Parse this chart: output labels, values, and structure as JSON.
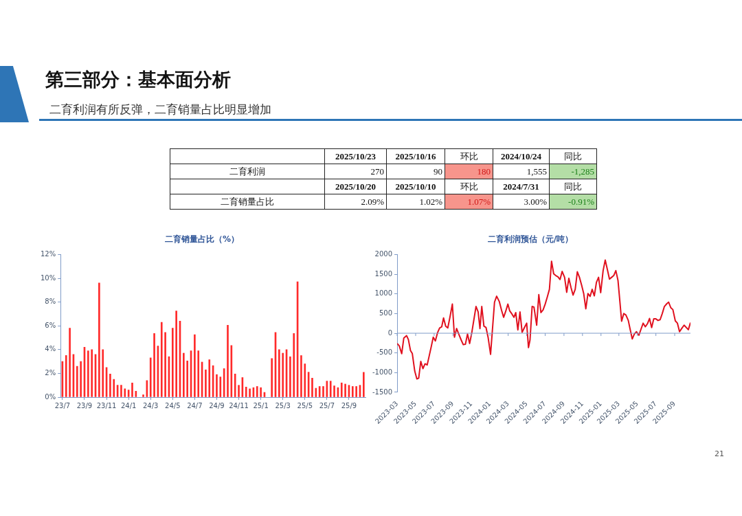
{
  "chart_data": [
    {
      "type": "other",
      "title": "第三部分：基本面分析",
      "subtitle": "二育利润有所反弹，二育销量占比明显增加",
      "cell_labels": [
        [
          null,
          "2025/10/23",
          "2025/10/16",
          "环比",
          "2024/10/24",
          "同比"
        ],
        [
          "二育利润",
          "270",
          "90",
          "180",
          "1,555",
          "-1,285"
        ],
        [
          null,
          "2025/10/20",
          "2025/10/10",
          "环比",
          "2024/7/31",
          "同比"
        ],
        [
          "二育销量占比",
          "2.09%",
          "1.02%",
          "1.07%",
          "3.00%",
          "-0.91%"
        ]
      ],
      "colors": [
        null,
        null,
        null,
        "#f7958c",
        null,
        "#b4dea6"
      ],
      "annotations": [
        "21"
      ]
    },
    {
      "type": "bar",
      "title": "二育销量占比（%）",
      "categories": [
        "23/7",
        null,
        null,
        null,
        null,
        null,
        "23/9",
        null,
        null,
        null,
        null,
        null,
        "23/11",
        null,
        null,
        null,
        null,
        null,
        "24/1",
        null,
        null,
        null,
        null,
        null,
        "24/3",
        null,
        null,
        null,
        null,
        null,
        "24/5",
        null,
        null,
        null,
        null,
        null,
        "24/7",
        null,
        null,
        null,
        null,
        null,
        "24/9",
        null,
        null,
        null,
        null,
        null,
        "24/11",
        null,
        null,
        null,
        null,
        null,
        "25/1",
        null,
        null,
        null,
        null,
        null,
        "25/3",
        null,
        null,
        null,
        null,
        null,
        "25/5",
        null,
        null,
        null,
        null,
        null,
        "25/7",
        null,
        null,
        null,
        null,
        null,
        "25/9",
        null,
        null,
        null,
        null
      ],
      "values": [
        3.0,
        3.5,
        5.8,
        3.6,
        2.6,
        3.0,
        4.2,
        3.9,
        4.0,
        3.6,
        9.6,
        4.0,
        2.5,
        1.95,
        1.5,
        1.0,
        1.0,
        0.7,
        0.6,
        1.2,
        0.5,
        null,
        0.2,
        1.4,
        3.3,
        5.35,
        4.3,
        6.3,
        5.45,
        3.4,
        5.8,
        7.25,
        6.4,
        3.7,
        3.05,
        3.9,
        5.25,
        3.9,
        2.95,
        2.3,
        3.15,
        2.65,
        1.9,
        1.7,
        2.4,
        6.05,
        4.35,
        1.95,
        1.0,
        1.65,
        0.85,
        0.7,
        0.8,
        0.9,
        0.8,
        0.4,
        null,
        3.25,
        5.45,
        4.0,
        3.7,
        4.0,
        3.4,
        5.35,
        9.7,
        3.5,
        2.8,
        2.1,
        1.6,
        0.75,
        0.9,
        0.9,
        1.35,
        1.35,
        0.95,
        0.8,
        1.2,
        1.1,
        1.0,
        0.9,
        0.9,
        1.0,
        2.09
      ],
      "color": "#ff2a2a",
      "ylim": [
        0,
        12
      ],
      "yticks": [
        {
          "value": 0,
          "label": "0%"
        },
        {
          "value": 2,
          "label": "2%"
        },
        {
          "value": 4,
          "label": "4%"
        },
        {
          "value": 6,
          "label": "6%"
        },
        {
          "value": 8,
          "label": "8%"
        },
        {
          "value": 10,
          "label": "10%"
        },
        {
          "value": 12,
          "label": "12%"
        }
      ]
    },
    {
      "type": "line",
      "title": "二育利润预估（元/吨）",
      "x": [
        "2023-03-01",
        "2023-03-08",
        "2023-03-16",
        "2023-03-23",
        "2023-04-01",
        "2023-04-07",
        "2023-04-14",
        "2023-04-20",
        "2023-04-28",
        "2023-05-05",
        "2023-05-11",
        "2023-05-18",
        "2023-05-25",
        "2023-06-01",
        "2023-06-08",
        "2023-06-15",
        "2023-06-22",
        "2023-06-28",
        "2023-07-05",
        "2023-07-12",
        "2023-07-19",
        "2023-07-26",
        "2023-08-01",
        "2023-08-08",
        "2023-08-15",
        "2023-08-22",
        "2023-08-30",
        "2023-09-06",
        "2023-09-13",
        "2023-09-20",
        "2023-09-28",
        "2023-10-05",
        "2023-10-12",
        "2023-10-19",
        "2023-10-26",
        "2023-11-02",
        "2023-11-09",
        "2023-11-16",
        "2023-11-23",
        "2023-11-29",
        "2023-12-05",
        "2023-12-12",
        "2023-12-19",
        "2023-12-26",
        "2024-01-03",
        "2024-01-16",
        "2024-01-23",
        "2024-02-01",
        "2024-02-08",
        "2024-02-15",
        "2024-02-22",
        "2024-02-29",
        "2024-03-06",
        "2024-03-13",
        "2024-03-20",
        "2024-03-26",
        "2024-04-02",
        "2024-04-09",
        "2024-04-16",
        "2024-04-23",
        "2024-05-01",
        "2024-05-07",
        "2024-05-12",
        "2024-05-19",
        "2024-05-25",
        "2024-06-03",
        "2024-06-10",
        "2024-06-17",
        "2024-06-24",
        "2024-07-01",
        "2024-07-08",
        "2024-07-15",
        "2024-07-22",
        "2024-07-29",
        "2024-08-05",
        "2024-08-12",
        "2024-08-19",
        "2024-08-26",
        "2024-09-03",
        "2024-09-10",
        "2024-09-17",
        "2024-09-24",
        "2024-10-01",
        "2024-10-08",
        "2024-10-15",
        "2024-10-22",
        "2024-10-29",
        "2024-11-05",
        "2024-11-12",
        "2024-11-19",
        "2024-11-26",
        "2024-12-03",
        "2024-12-10",
        "2024-12-17",
        "2024-12-24",
        "2024-12-31",
        "2025-01-08",
        "2025-01-15",
        "2025-01-22",
        "2025-01-29",
        "2025-02-05",
        "2025-02-12",
        "2025-02-19",
        "2025-02-26",
        "2025-03-03",
        "2025-03-10",
        "2025-03-17",
        "2025-03-24",
        "2025-04-01",
        "2025-04-07",
        "2025-04-14",
        "2025-04-21",
        "2025-04-28",
        "2025-05-06",
        "2025-05-13",
        "2025-05-20",
        "2025-05-27",
        "2025-06-03",
        "2025-06-10",
        "2025-06-17",
        "2025-06-24",
        "2025-07-01",
        "2025-07-08",
        "2025-07-15",
        "2025-07-22",
        "2025-07-29",
        "2025-08-06",
        "2025-08-12",
        "2025-08-19",
        "2025-08-26",
        "2025-09-03",
        "2025-09-10",
        "2025-09-17",
        "2025-09-24",
        "2025-10-02",
        "2025-10-16",
        "2025-10-23"
      ],
      "values": [
        -260,
        -320,
        -520,
        -120,
        -60,
        -160,
        -440,
        -515,
        -960,
        -1160,
        -1140,
        -715,
        -900,
        -775,
        -805,
        -565,
        -320,
        -100,
        -195,
        10,
        135,
        165,
        390,
        180,
        135,
        405,
        740,
        -100,
        120,
        -20,
        -170,
        -290,
        -280,
        -20,
        -260,
        10,
        345,
        680,
        545,
        120,
        680,
        180,
        145,
        -110,
        -535,
        790,
        940,
        800,
        590,
        405,
        560,
        740,
        570,
        495,
        405,
        525,
        85,
        540,
        25,
        135,
        255,
        -365,
        -170,
        680,
        665,
        205,
        980,
        525,
        590,
        740,
        920,
        1115,
        1830,
        1510,
        1465,
        1435,
        1365,
        1570,
        1420,
        1040,
        1395,
        1165,
        970,
        1115,
        1560,
        1420,
        1225,
        1010,
        620,
        1010,
        935,
        1115,
        950,
        1295,
        1420,
        1030,
        1590,
        1860,
        1620,
        1375,
        1420,
        1465,
        1590,
        1345,
        920,
        305,
        500,
        465,
        325,
        105,
        -145,
        -20,
        40,
        -50,
        105,
        255,
        165,
        240,
        375,
        145,
        365,
        365,
        325,
        345,
        500,
        680,
        750,
        790,
        650,
        600,
        315,
        255,
        40,
        120,
        205,
        90,
        270
      ],
      "color": "#e0101e",
      "marker": "none",
      "xlim": [
        "2023-03-01",
        "2025-10-23"
      ],
      "xticks": [
        "2023-03",
        "2023-05",
        "2023-07",
        "2023-09",
        "2023-11",
        "2024-01",
        "2024-03",
        "2024-05",
        "2024-07",
        "2024-09",
        "2024-11",
        "2025-01",
        "2025-03",
        "2025-05",
        "2025-07",
        "2025-09"
      ],
      "ylim": [
        -1500,
        2000
      ],
      "yticks": [
        -1500,
        -1000,
        -500,
        0,
        500,
        1000,
        1500,
        2000
      ],
      "ref_lines": [
        {
          "axis": "y",
          "value": 0,
          "color": "#7f9bc8"
        }
      ]
    }
  ]
}
